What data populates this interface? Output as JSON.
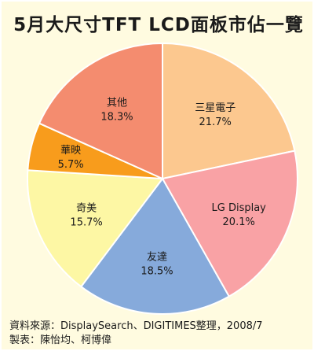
{
  "title": "5月大尺寸TFT LCD面板市佔一覽",
  "chart_data": {
    "type": "pie",
    "slices": [
      {
        "label": "三星電子",
        "value": 21.7,
        "value_text": "21.7%",
        "color": "#fcc88f"
      },
      {
        "label": "LG Display",
        "value": 20.1,
        "value_text": "20.1%",
        "color": "#f9a2a5"
      },
      {
        "label": "友達",
        "value": 18.5,
        "value_text": "18.5%",
        "color": "#86aadb"
      },
      {
        "label": "奇美",
        "value": 15.7,
        "value_text": "15.7%",
        "color": "#fdf7a4"
      },
      {
        "label": "華映",
        "value": 5.7,
        "value_text": "5.7%",
        "color": "#f89c1c"
      },
      {
        "label": "其他",
        "value": 18.3,
        "value_text": "18.3%",
        "color": "#f48c6f"
      }
    ]
  },
  "footer": {
    "source": "資料來源：DisplaySearch、DIGITIMES整理，2008/7",
    "credit": "製表：陳怡均、柯博偉"
  }
}
